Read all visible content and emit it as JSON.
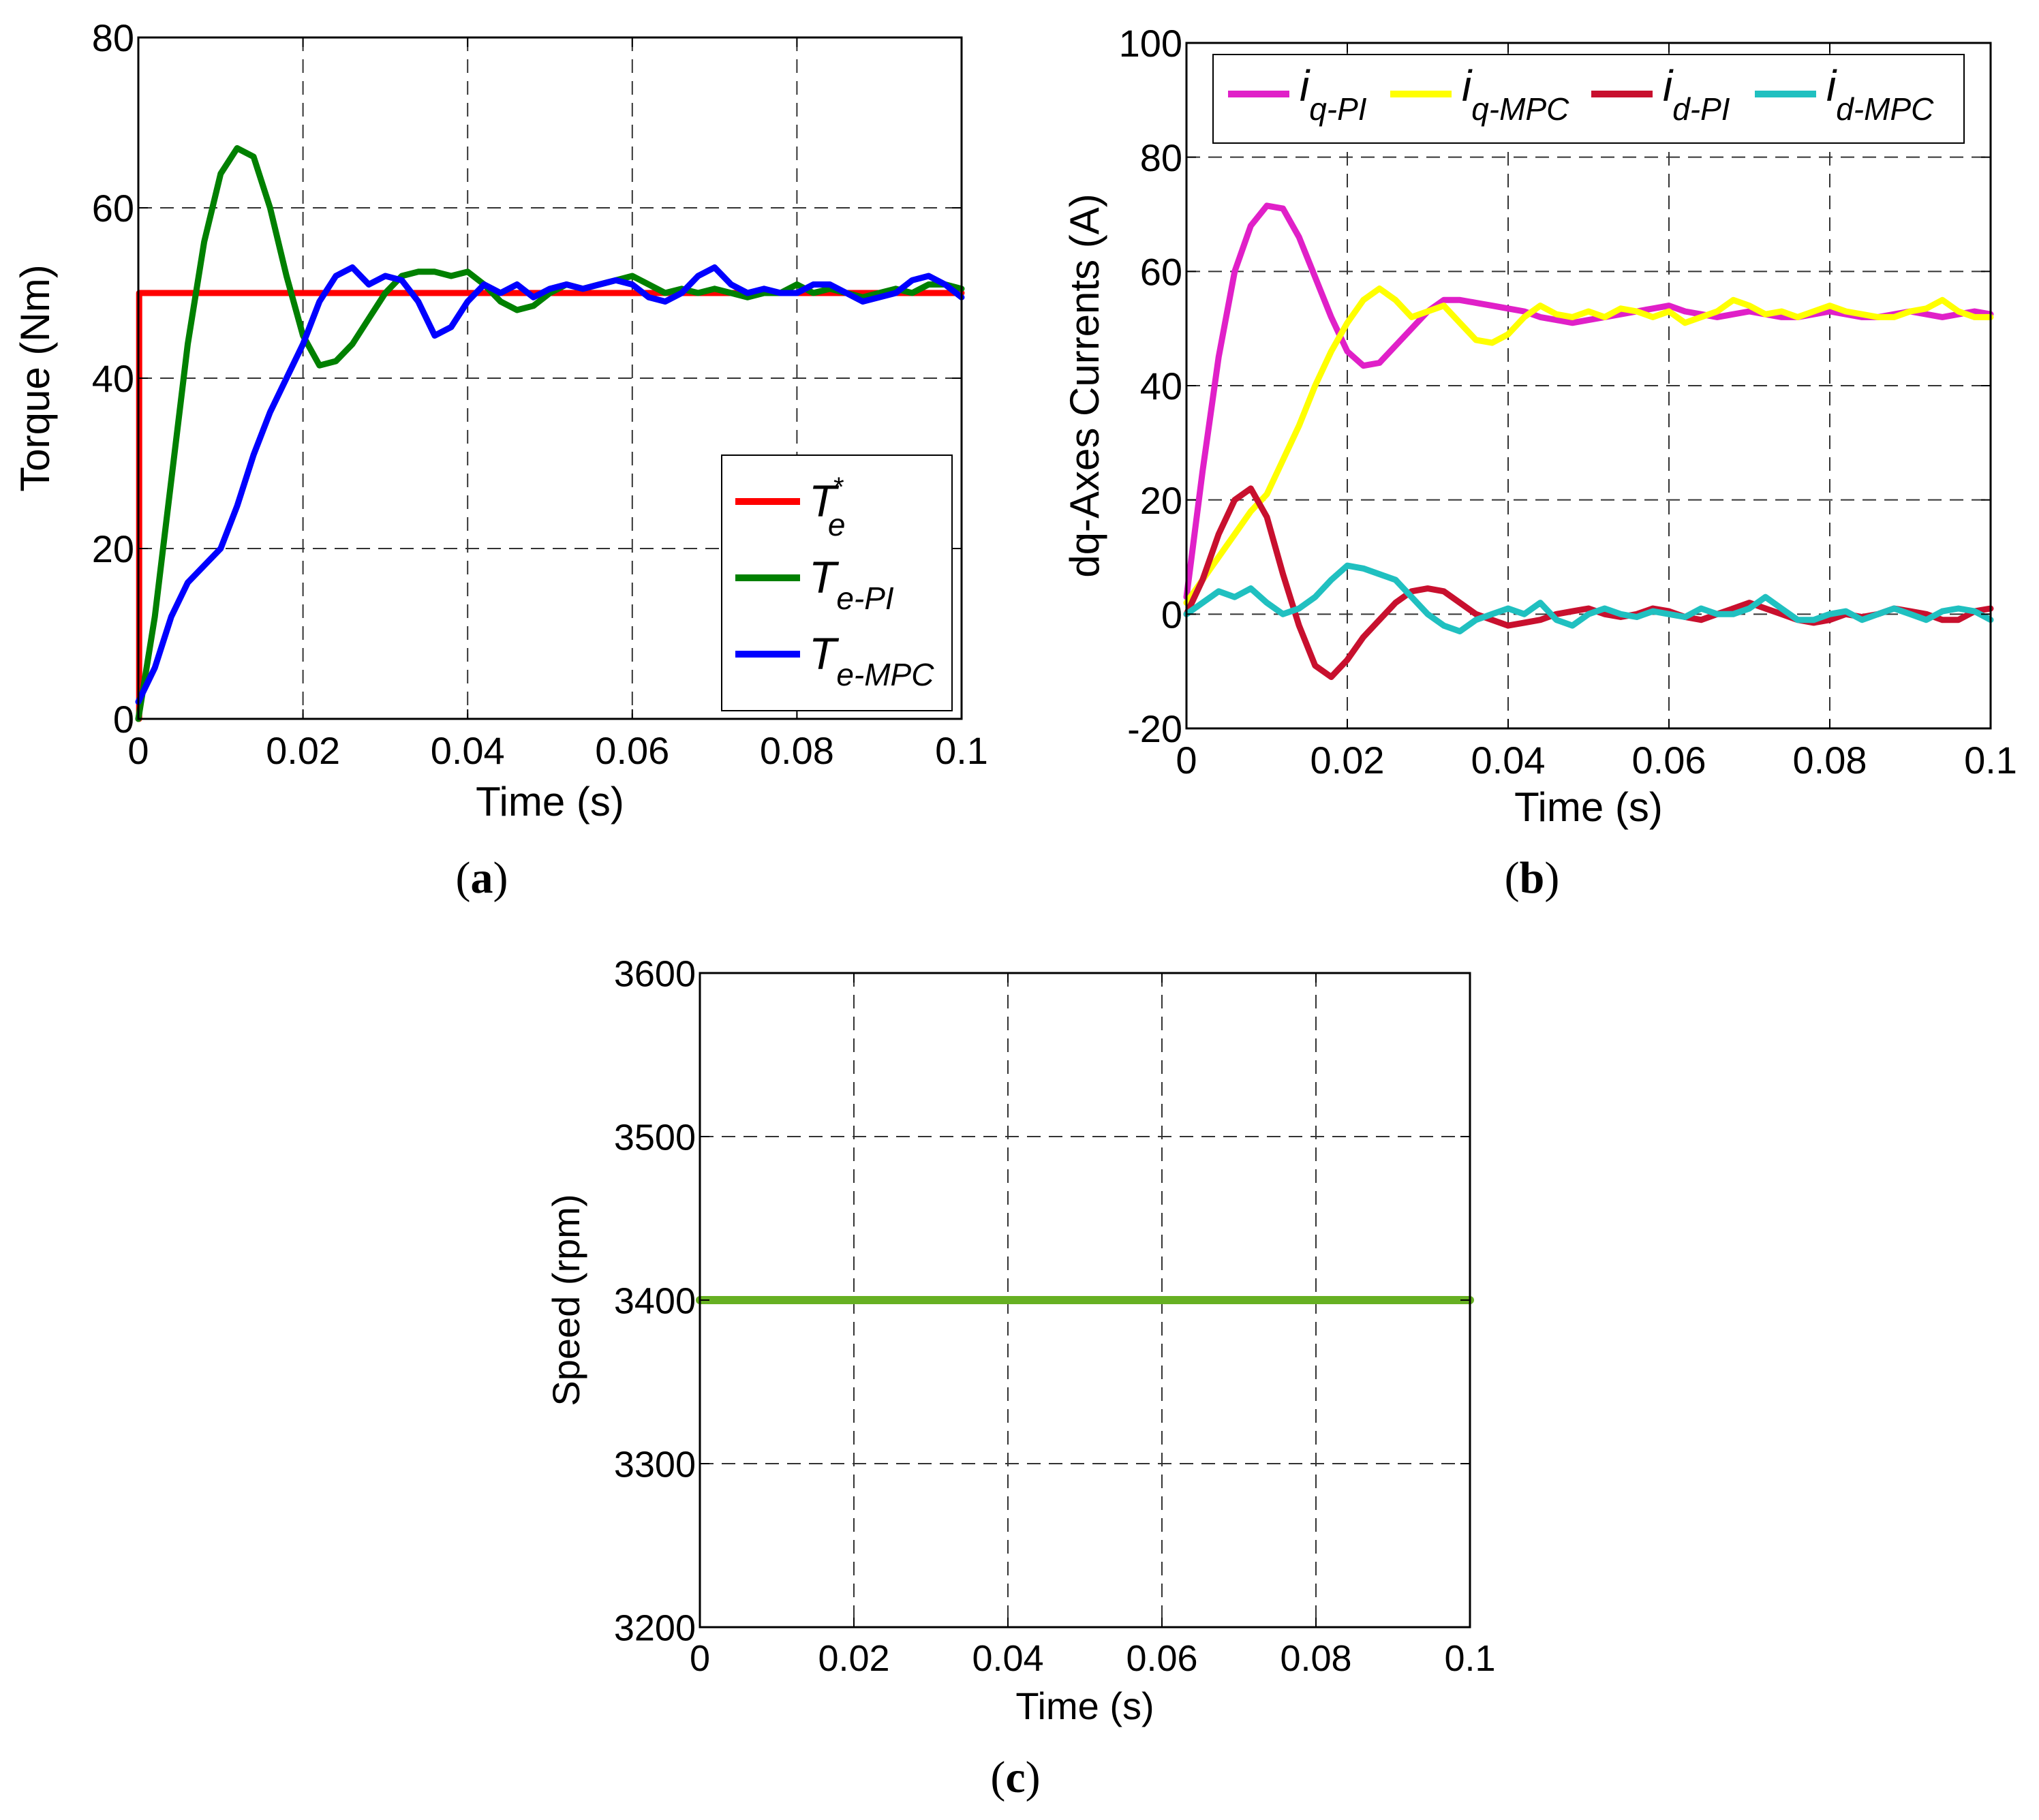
{
  "chart_data": [
    {
      "id": "a",
      "type": "line",
      "caption": "a",
      "xlabel": "Time (s)",
      "ylabel": "Torque (Nm)",
      "xlim": [
        0,
        0.1
      ],
      "ylim": [
        0,
        80
      ],
      "xticks": [
        0,
        0.02,
        0.04,
        0.06,
        0.08,
        0.1
      ],
      "xtick_labels": [
        "0",
        "0.02",
        "0.04",
        "0.06",
        "0.08",
        "0.1"
      ],
      "yticks": [
        0,
        20,
        40,
        60,
        80
      ],
      "ytick_labels": [
        "0",
        "20",
        "40",
        "60",
        "80"
      ],
      "grid": true,
      "legend_position": "bottom-right",
      "series": [
        {
          "name": "Te*",
          "label_main": "T",
          "label_sub": "e",
          "label_sup": "*",
          "color": "#ff0000",
          "x": [
            0,
            0.0001,
            0.0001,
            0.1
          ],
          "y": [
            0,
            0,
            50,
            50
          ]
        },
        {
          "name": "Te-PI",
          "label_main": "T",
          "label_sub": "e-PI",
          "label_sup": "",
          "color": "#008000",
          "x": [
            0,
            0.002,
            0.004,
            0.006,
            0.008,
            0.01,
            0.012,
            0.014,
            0.016,
            0.018,
            0.02,
            0.022,
            0.024,
            0.026,
            0.028,
            0.03,
            0.032,
            0.034,
            0.036,
            0.038,
            0.04,
            0.042,
            0.044,
            0.046,
            0.048,
            0.05,
            0.052,
            0.054,
            0.056,
            0.058,
            0.06,
            0.062,
            0.064,
            0.066,
            0.068,
            0.07,
            0.072,
            0.074,
            0.076,
            0.078,
            0.08,
            0.082,
            0.084,
            0.086,
            0.088,
            0.09,
            0.092,
            0.094,
            0.096,
            0.098,
            0.1
          ],
          "y": [
            0,
            12,
            28,
            44,
            56,
            64,
            67,
            66,
            60,
            52,
            45,
            41.5,
            42,
            44,
            47,
            50,
            52,
            52.5,
            52.5,
            52,
            52.5,
            51,
            49,
            48,
            48.5,
            50,
            51,
            50.5,
            51,
            51.5,
            52,
            51,
            50,
            50.5,
            50,
            50.5,
            50,
            49.5,
            50,
            50,
            51,
            50,
            50.5,
            50,
            49.5,
            50,
            50.5,
            50,
            51,
            51,
            50.5
          ]
        },
        {
          "name": "Te-MPC",
          "label_main": "T",
          "label_sub": "e-MPC",
          "label_sup": "",
          "color": "#0000ff",
          "x": [
            0,
            0.002,
            0.004,
            0.006,
            0.008,
            0.01,
            0.012,
            0.014,
            0.016,
            0.018,
            0.02,
            0.022,
            0.024,
            0.026,
            0.028,
            0.03,
            0.032,
            0.034,
            0.036,
            0.038,
            0.04,
            0.042,
            0.044,
            0.046,
            0.048,
            0.05,
            0.052,
            0.054,
            0.056,
            0.058,
            0.06,
            0.062,
            0.064,
            0.066,
            0.068,
            0.07,
            0.072,
            0.074,
            0.076,
            0.078,
            0.08,
            0.082,
            0.084,
            0.086,
            0.088,
            0.09,
            0.092,
            0.094,
            0.096,
            0.098,
            0.1
          ],
          "y": [
            2,
            6,
            12,
            16,
            18,
            20,
            25,
            31,
            36,
            40,
            44,
            49,
            52,
            53,
            51,
            52,
            51.5,
            49,
            45,
            46,
            49,
            51,
            50,
            51,
            49.5,
            50.5,
            51,
            50.5,
            51,
            51.5,
            51,
            49.5,
            49,
            50,
            52,
            53,
            51,
            50,
            50.5,
            50,
            50,
            51,
            51,
            50,
            49,
            49.5,
            50,
            51.5,
            52,
            51,
            49.5
          ]
        }
      ]
    },
    {
      "id": "b",
      "type": "line",
      "caption": "b",
      "xlabel": "Time (s)",
      "ylabel": "dq-Axes Currents (A)",
      "xlim": [
        0,
        0.1
      ],
      "ylim": [
        -20,
        100
      ],
      "xticks": [
        0,
        0.02,
        0.04,
        0.06,
        0.08,
        0.1
      ],
      "xtick_labels": [
        "0",
        "0.02",
        "0.04",
        "0.06",
        "0.08",
        "0.1"
      ],
      "yticks": [
        -20,
        0,
        20,
        40,
        60,
        80,
        100
      ],
      "ytick_labels": [
        "-20",
        "0",
        "20",
        "40",
        "60",
        "80",
        "100"
      ],
      "grid": true,
      "legend_position": "top",
      "series": [
        {
          "name": "iq-PI",
          "label_main": "i",
          "label_sub": "q-PI",
          "color": "#e020c8",
          "x": [
            0,
            0.002,
            0.004,
            0.006,
            0.008,
            0.01,
            0.012,
            0.014,
            0.016,
            0.018,
            0.02,
            0.022,
            0.024,
            0.026,
            0.028,
            0.03,
            0.032,
            0.034,
            0.036,
            0.038,
            0.04,
            0.042,
            0.044,
            0.046,
            0.048,
            0.05,
            0.052,
            0.054,
            0.056,
            0.058,
            0.06,
            0.062,
            0.064,
            0.066,
            0.068,
            0.07,
            0.072,
            0.074,
            0.076,
            0.078,
            0.08,
            0.082,
            0.084,
            0.086,
            0.088,
            0.09,
            0.092,
            0.094,
            0.096,
            0.098,
            0.1
          ],
          "y": [
            3,
            25,
            45,
            60,
            68,
            71.5,
            71,
            66,
            59,
            52,
            46,
            43.5,
            44,
            47,
            50,
            53,
            55,
            55,
            54.5,
            54,
            53.5,
            53,
            52,
            51.5,
            51,
            51.5,
            52,
            52.5,
            53,
            53.5,
            54,
            53,
            52.5,
            52,
            52.5,
            53,
            52.5,
            52,
            52,
            52.5,
            53,
            52.5,
            52,
            52,
            52.5,
            53,
            52.5,
            52,
            52.5,
            53,
            52.5
          ]
        },
        {
          "name": "iq-MPC",
          "label_main": "i",
          "label_sub": "q-MPC",
          "color": "#ffff00",
          "x": [
            0,
            0.002,
            0.004,
            0.006,
            0.008,
            0.01,
            0.012,
            0.014,
            0.016,
            0.018,
            0.02,
            0.022,
            0.024,
            0.026,
            0.028,
            0.03,
            0.032,
            0.034,
            0.036,
            0.038,
            0.04,
            0.042,
            0.044,
            0.046,
            0.048,
            0.05,
            0.052,
            0.054,
            0.056,
            0.058,
            0.06,
            0.062,
            0.064,
            0.066,
            0.068,
            0.07,
            0.072,
            0.074,
            0.076,
            0.078,
            0.08,
            0.082,
            0.084,
            0.086,
            0.088,
            0.09,
            0.092,
            0.094,
            0.096,
            0.098,
            0.1
          ],
          "y": [
            2,
            6,
            10,
            14,
            18,
            21,
            27,
            33,
            40,
            46,
            51,
            55,
            57,
            55,
            52,
            53,
            54,
            51,
            48,
            47.5,
            49,
            52,
            54,
            52.5,
            52,
            53,
            52,
            53.5,
            53,
            52,
            53,
            51,
            52,
            53,
            55,
            54,
            52.5,
            53,
            52,
            53,
            54,
            53,
            52.5,
            52,
            52,
            53,
            53.5,
            55,
            53,
            52,
            52
          ]
        },
        {
          "name": "id-PI",
          "label_main": "i",
          "label_sub": "d-PI",
          "color": "#c8102e",
          "x": [
            0,
            0.002,
            0.004,
            0.006,
            0.008,
            0.01,
            0.012,
            0.014,
            0.016,
            0.018,
            0.02,
            0.022,
            0.024,
            0.026,
            0.028,
            0.03,
            0.032,
            0.034,
            0.036,
            0.038,
            0.04,
            0.042,
            0.044,
            0.046,
            0.048,
            0.05,
            0.052,
            0.054,
            0.056,
            0.058,
            0.06,
            0.062,
            0.064,
            0.066,
            0.068,
            0.07,
            0.072,
            0.074,
            0.076,
            0.078,
            0.08,
            0.082,
            0.084,
            0.086,
            0.088,
            0.09,
            0.092,
            0.094,
            0.096,
            0.098,
            0.1
          ],
          "y": [
            0,
            6,
            14,
            20,
            22,
            17,
            7,
            -2,
            -9,
            -11,
            -8,
            -4,
            -1,
            2,
            4,
            4.5,
            4,
            2,
            0,
            -1,
            -2,
            -1.5,
            -1,
            0,
            0.5,
            1,
            0,
            -0.5,
            0,
            1,
            0.5,
            -0.5,
            -1,
            0,
            1,
            2,
            1,
            0,
            -1,
            -1.5,
            -1,
            0,
            -0.5,
            0,
            1,
            0.5,
            0,
            -1,
            -1,
            0.5,
            1
          ]
        },
        {
          "name": "id-MPC",
          "label_main": "i",
          "label_sub": "d-MPC",
          "color": "#20c0c0",
          "x": [
            0,
            0.002,
            0.004,
            0.006,
            0.008,
            0.01,
            0.012,
            0.014,
            0.016,
            0.018,
            0.02,
            0.022,
            0.024,
            0.026,
            0.028,
            0.03,
            0.032,
            0.034,
            0.036,
            0.038,
            0.04,
            0.042,
            0.044,
            0.046,
            0.048,
            0.05,
            0.052,
            0.054,
            0.056,
            0.058,
            0.06,
            0.062,
            0.064,
            0.066,
            0.068,
            0.07,
            0.072,
            0.074,
            0.076,
            0.078,
            0.08,
            0.082,
            0.084,
            0.086,
            0.088,
            0.09,
            0.092,
            0.094,
            0.096,
            0.098,
            0.1
          ],
          "y": [
            0,
            2,
            4,
            3,
            4.5,
            2,
            0,
            1,
            3,
            6,
            8.5,
            8,
            7,
            6,
            3,
            0,
            -2,
            -3,
            -1,
            0,
            1,
            0,
            2,
            -1,
            -2,
            0,
            1,
            0,
            -0.5,
            0.5,
            0,
            -0.5,
            1,
            0,
            0,
            1,
            3,
            1,
            -1,
            -1,
            0,
            0.5,
            -1,
            0,
            1,
            0,
            -1,
            0.5,
            1,
            0.5,
            -1
          ]
        }
      ]
    },
    {
      "id": "c",
      "type": "line",
      "caption": "c",
      "xlabel": "Time (s)",
      "ylabel": "Speed (rpm)",
      "xlim": [
        0,
        0.1
      ],
      "ylim": [
        3200,
        3600
      ],
      "xticks": [
        0,
        0.02,
        0.04,
        0.06,
        0.08,
        0.1
      ],
      "xtick_labels": [
        "0",
        "0.02",
        "0.04",
        "0.06",
        "0.08",
        "0.1"
      ],
      "yticks": [
        3200,
        3300,
        3400,
        3500,
        3600
      ],
      "ytick_labels": [
        "3200",
        "3300",
        "3400",
        "3500",
        "3600"
      ],
      "grid": true,
      "series": [
        {
          "name": "Speed",
          "color": "#66b022",
          "x": [
            0,
            0.1
          ],
          "y": [
            3400,
            3400
          ]
        }
      ]
    }
  ]
}
